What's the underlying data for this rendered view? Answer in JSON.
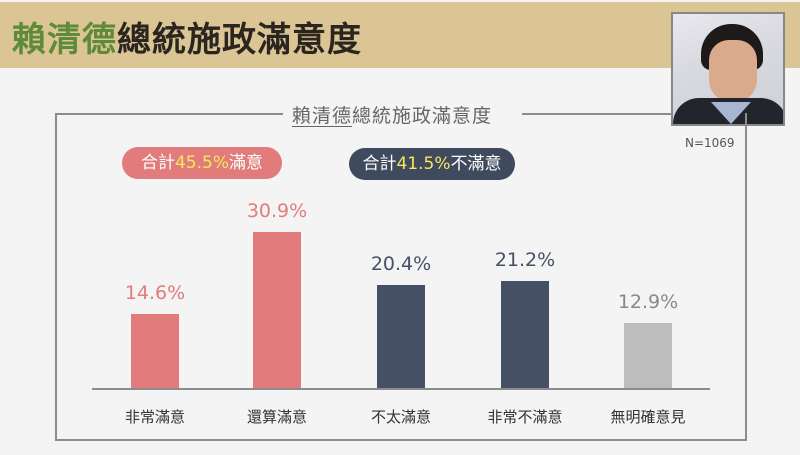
{
  "header": {
    "title_highlight": "賴清德",
    "title_rest": "總統施政滿意度",
    "band_color": "#dbc594",
    "highlight_color": "#5e8a3a"
  },
  "photo": {
    "description": "portrait-photo"
  },
  "sample_size": "N=1069",
  "chart_title_underlined": "賴清德",
  "chart_title_rest": "總統施政滿意度",
  "summary": {
    "satisfied": {
      "prefix": "合計",
      "pct": "45.5%",
      "suffix": "滿意",
      "color": "#e27b7b"
    },
    "dissatisfied": {
      "prefix": "合計",
      "pct": "41.5%",
      "suffix": "不滿意",
      "color": "#3f4a5e"
    }
  },
  "chart_data": {
    "type": "bar",
    "title": "賴清德總統施政滿意度",
    "categories": [
      "非常滿意",
      "還算滿意",
      "不太滿意",
      "非常不滿意",
      "無明確意見"
    ],
    "values": [
      14.6,
      30.9,
      20.4,
      21.2,
      12.9
    ],
    "labels": [
      "14.6%",
      "30.9%",
      "20.4%",
      "21.2%",
      "12.9%"
    ],
    "colors": [
      "#e27b7b",
      "#e27b7b",
      "#465064",
      "#465064",
      "#bdbdbd"
    ],
    "label_colors": [
      "#e27b7b",
      "#e27b7b",
      "#465064",
      "#465064",
      "#888888"
    ],
    "xlabel": "",
    "ylabel": "",
    "grid": false,
    "annotations": [
      "合計45.5%滿意",
      "合計41.5%不滿意",
      "N=1069"
    ]
  }
}
